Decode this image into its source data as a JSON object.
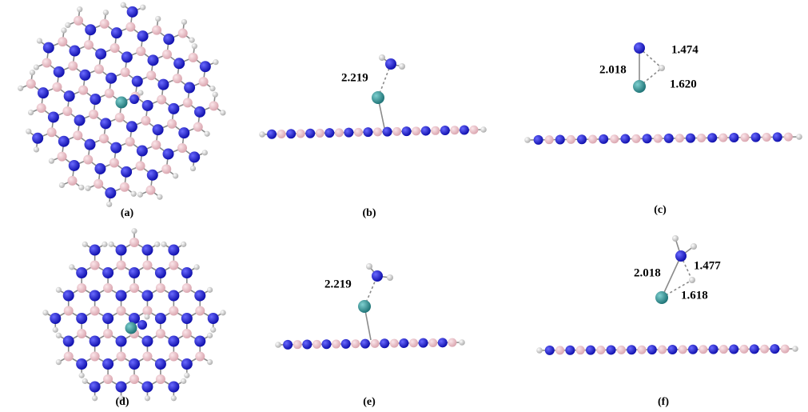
{
  "panels": [
    {
      "label": "(a)",
      "distances": []
    },
    {
      "label": "(b)",
      "distances": [
        "2.219"
      ]
    },
    {
      "label": "(c)",
      "distances": [
        "2.018",
        "1.474",
        "1.620"
      ]
    },
    {
      "label": "(d)",
      "distances": []
    },
    {
      "label": "(e)",
      "distances": [
        "2.219"
      ]
    },
    {
      "label": "(f)",
      "distances": [
        "2.018",
        "1.477",
        "1.618"
      ]
    }
  ]
}
